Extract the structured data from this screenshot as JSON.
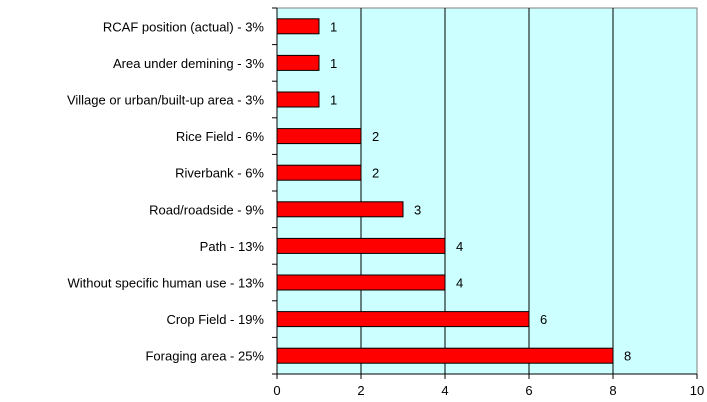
{
  "chart_data": {
    "type": "bar",
    "orientation": "horizontal",
    "categories": [
      "RCAF position (actual) - 3%",
      "Area under demining - 3%",
      "Village or urban/built-up area - 3%",
      "Rice Field - 6%",
      "Riverbank - 6%",
      "Road/roadside - 9%",
      "Path - 13%",
      "Without specific human use - 13%",
      "Crop Field - 19%",
      "Foraging area - 25%"
    ],
    "values": [
      1,
      1,
      1,
      2,
      2,
      3,
      4,
      4,
      6,
      8
    ],
    "data_labels": [
      "1",
      "1",
      "1",
      "2",
      "2",
      "3",
      "4",
      "4",
      "6",
      "8"
    ],
    "xlim": [
      0,
      10
    ],
    "x_ticks": [
      "0",
      "2",
      "4",
      "6",
      "8",
      "10"
    ],
    "grid": "vertical",
    "legend": "none",
    "colors": {
      "bar": "#ff0000",
      "plot_background": "#ccffff",
      "gridline": "#000000"
    }
  }
}
